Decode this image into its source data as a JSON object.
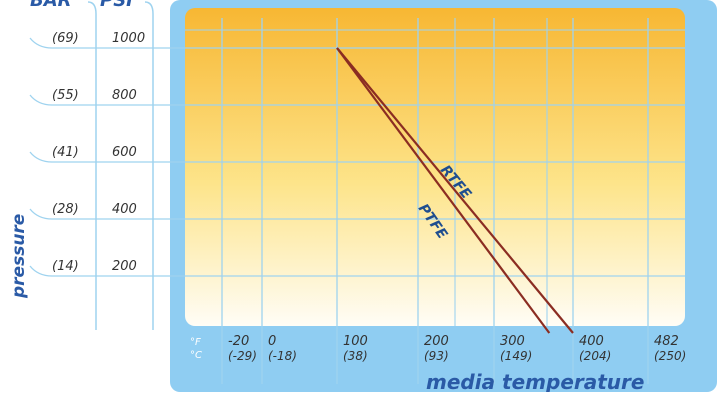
{
  "chart_data": {
    "type": "line",
    "title": "",
    "y_units": [
      "BAR",
      "PSI"
    ],
    "ylabel": "pressure",
    "xlabel": "media temperature",
    "x_unit_labels": [
      "°F",
      "°C"
    ],
    "x_ticks": [
      {
        "f": "-20",
        "c": "(-29)"
      },
      {
        "f": "0",
        "c": "(-18)"
      },
      {
        "f": "100",
        "c": "(38)"
      },
      {
        "f": "200",
        "c": "(93)"
      },
      {
        "f": "300",
        "c": "(149)"
      },
      {
        "f": "400",
        "c": "(204)"
      },
      {
        "f": "482",
        "c": "(250)"
      }
    ],
    "y_ticks": [
      {
        "psi": "1000",
        "bar": "(69)"
      },
      {
        "psi": "800",
        "bar": "(55)"
      },
      {
        "psi": "600",
        "bar": "(41)"
      },
      {
        "psi": "400",
        "bar": "(28)"
      },
      {
        "psi": "200",
        "bar": "(14)"
      }
    ],
    "xlim_f": [
      -20,
      482
    ],
    "ylim_psi": [
      0,
      1000
    ],
    "grid": true,
    "series": [
      {
        "name": "RTFE",
        "x": [
          100,
          400
        ],
        "y": [
          1000,
          0
        ],
        "color": "#8b2d22"
      },
      {
        "name": "PTFE",
        "x": [
          100,
          370
        ],
        "y": [
          1000,
          0
        ],
        "color": "#8b2d22"
      }
    ],
    "colors": {
      "panel_bg": "#8fcdf2",
      "grid": "#9fd3ef",
      "gradient_top": "#f7b733",
      "gradient_bottom": "#fffdf6",
      "tick_text": "#333333",
      "axis_label_text": "#2a5aa6",
      "series_label_text": "#1f4e8f"
    }
  }
}
